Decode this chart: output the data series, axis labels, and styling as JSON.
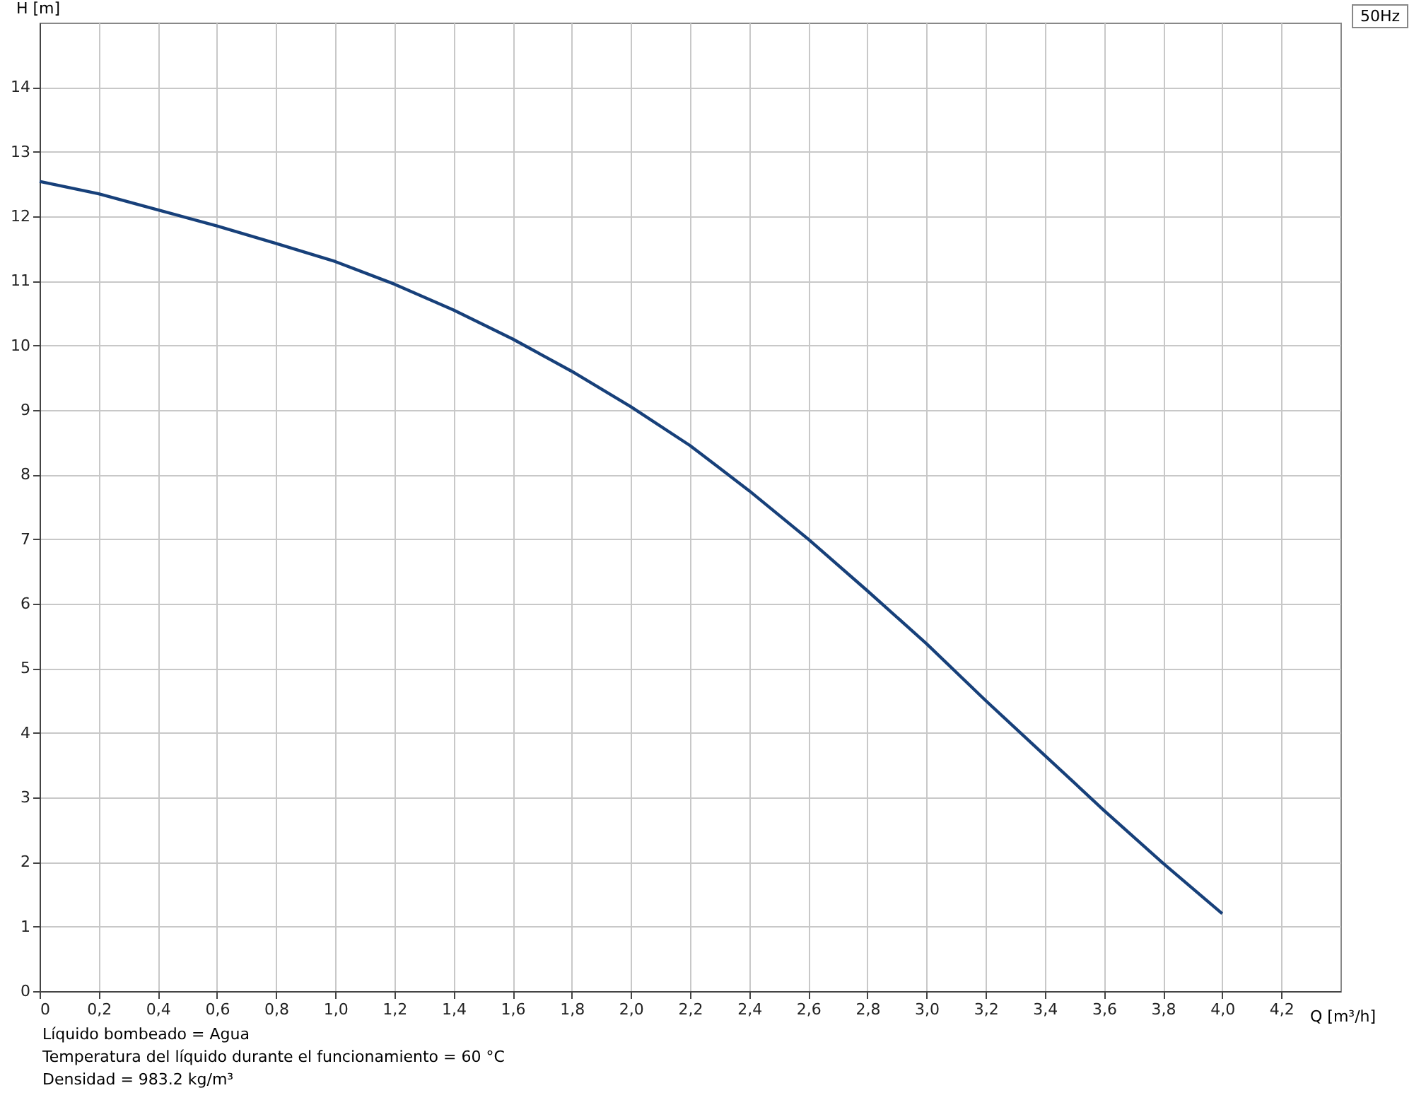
{
  "chart_data": {
    "type": "line",
    "title": "50Hz",
    "xlabel": "Q [m³/h]",
    "ylabel": "H [m]",
    "x": [
      0,
      0.2,
      0.4,
      0.6,
      0.8,
      1.0,
      1.2,
      1.4,
      1.6,
      1.8,
      2.0,
      2.2,
      2.4,
      2.6,
      2.8,
      3.0,
      3.2,
      3.4,
      3.6,
      3.8,
      4.0
    ],
    "series": [
      {
        "color": "#17407a",
        "values": [
          12.54,
          12.35,
          12.1,
          11.85,
          11.58,
          11.3,
          10.95,
          10.55,
          10.1,
          9.6,
          9.05,
          8.45,
          7.75,
          7.0,
          6.2,
          5.38,
          4.5,
          3.65,
          2.8,
          1.98,
          1.2
        ]
      }
    ],
    "xlim": [
      0,
      4.4
    ],
    "xticks": [
      0,
      {
        "value": 0.2,
        "label": "0,2"
      },
      {
        "value": 0.4,
        "label": "0,4"
      },
      {
        "value": 0.6,
        "label": "0,6"
      },
      {
        "value": 0.8,
        "label": "0,8"
      },
      {
        "value": 1.0,
        "label": "1,0"
      },
      {
        "value": 1.2,
        "label": "1,2"
      },
      {
        "value": 1.4,
        "label": "1,4"
      },
      {
        "value": 1.6,
        "label": "1,6"
      },
      {
        "value": 1.8,
        "label": "1,8"
      },
      {
        "value": 2.0,
        "label": "2,0"
      },
      {
        "value": 2.2,
        "label": "2,2"
      },
      {
        "value": 2.4,
        "label": "2,4"
      },
      {
        "value": 2.6,
        "label": "2,6"
      },
      {
        "value": 2.8,
        "label": "2,8"
      },
      {
        "value": 3.0,
        "label": "3,0"
      },
      {
        "value": 3.2,
        "label": "3,2"
      },
      {
        "value": 3.4,
        "label": "3,4"
      },
      {
        "value": 3.6,
        "label": "3,6"
      },
      {
        "value": 3.8,
        "label": "3,8"
      },
      {
        "value": 4.0,
        "label": "4,0"
      },
      {
        "value": 4.2,
        "label": "4,2"
      }
    ],
    "ylim": [
      0,
      15
    ],
    "yticks": [
      0,
      1,
      2,
      3,
      4,
      5,
      6,
      7,
      8,
      9,
      10,
      11,
      12,
      13,
      14
    ],
    "grid": true,
    "marker": "none",
    "line_style": "solid",
    "annotations": [
      "Líquido bombeado = Agua",
      "Temperatura del líquido durante el funcionamiento = 60 °C",
      "Densidad = 983.2 kg/m³"
    ]
  }
}
